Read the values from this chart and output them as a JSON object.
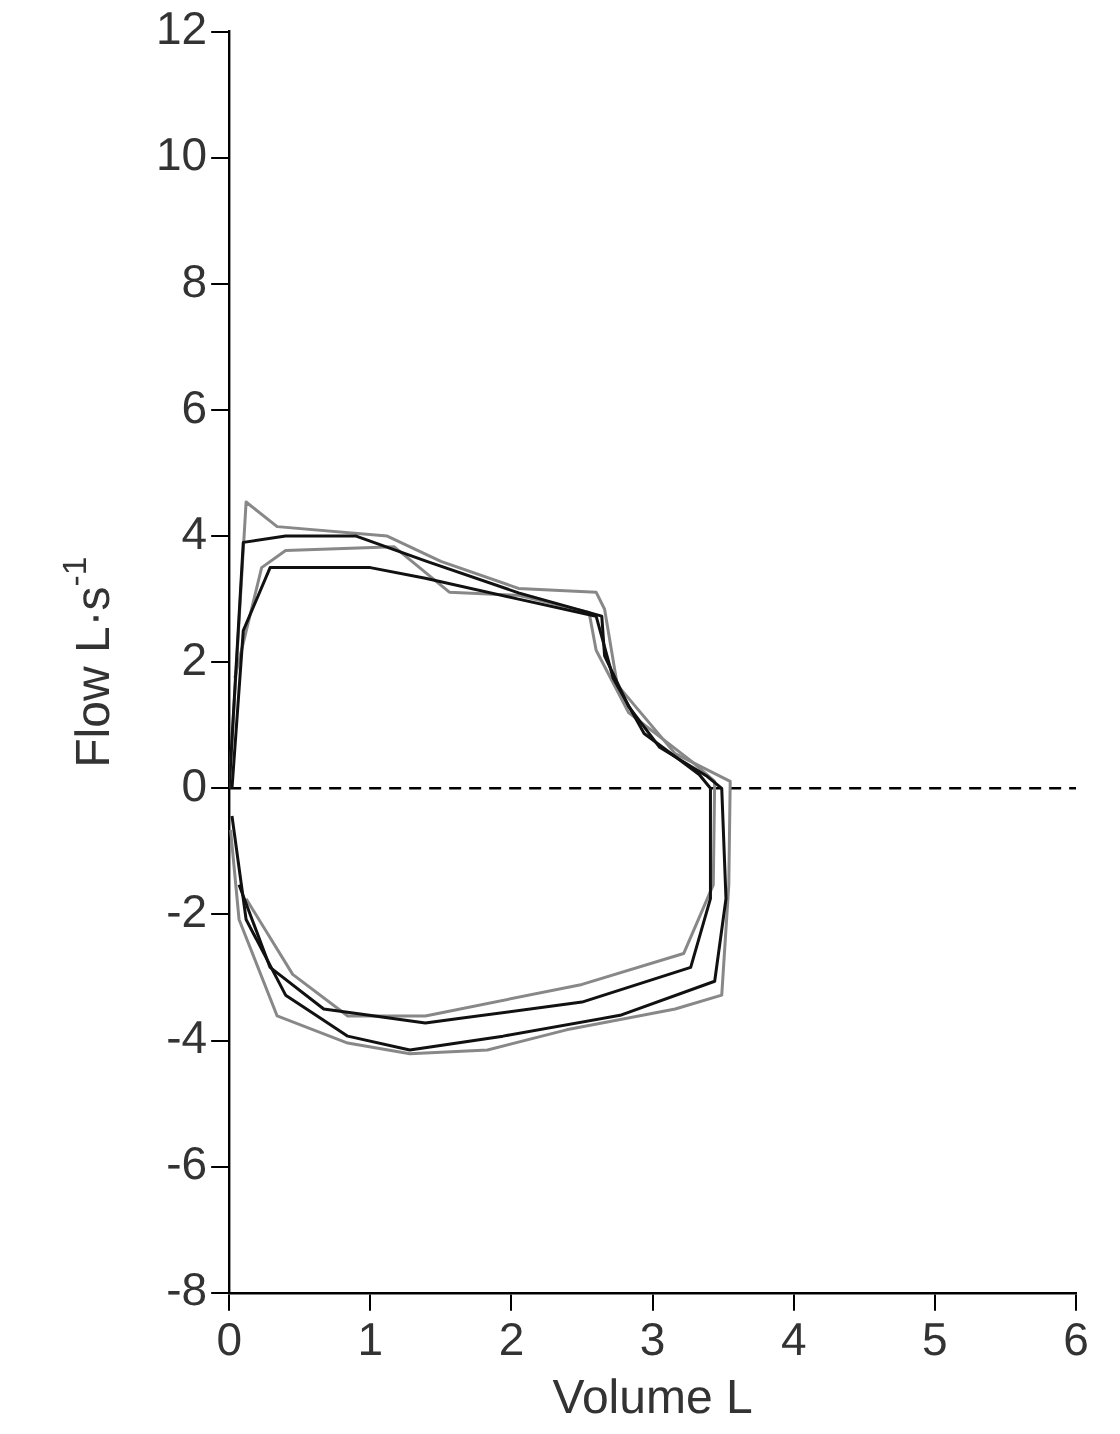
{
  "chart_data": {
    "type": "line",
    "xlabel": "Volume L",
    "ylabel": "Flow L·s$^{-1}$",
    "xlim": [
      0,
      6
    ],
    "xticks": [
      0,
      1,
      2,
      3,
      4,
      5,
      6
    ],
    "ylim": [
      -8,
      12
    ],
    "yticks": [
      -8,
      -6,
      -4,
      -2,
      0,
      2,
      4,
      6,
      8,
      10,
      12
    ],
    "grid": false,
    "legend": false,
    "marker": "none",
    "line_style": "solid",
    "ref_lines": [
      {
        "axis": "y",
        "value": 0,
        "line_style": "dashed",
        "color": "#000000"
      }
    ],
    "series": [
      {
        "color": "#111111",
        "x": [
          0,
          0.1,
          0.4,
          0.9,
          1.4,
          2.05,
          2.64,
          2.66,
          2.83,
          3.05,
          3.38,
          3.49,
          3.52,
          3.44,
          2.77,
          1.94,
          1.28,
          0.84,
          0.4,
          0.12,
          0.02
        ],
        "values": [
          0,
          3.9,
          4.0,
          4.0,
          3.6,
          3.1,
          2.73,
          2.1,
          1.3,
          0.65,
          0.2,
          0,
          -1.75,
          -3.06,
          -3.6,
          -3.93,
          -4.15,
          -3.93,
          -3.28,
          -2.08,
          -0.44
        ]
      },
      {
        "color": "#111111",
        "x": [
          0.02,
          0.1,
          0.29,
          1.0,
          1.39,
          2.05,
          2.6,
          2.72,
          2.94,
          3.33,
          3.41,
          3.41,
          3.27,
          2.5,
          1.39,
          0.67,
          0.29,
          0.07
        ],
        "values": [
          0,
          2.5,
          3.5,
          3.5,
          3.33,
          3.0,
          2.73,
          1.75,
          0.87,
          0.22,
          0,
          -1.75,
          -2.84,
          -3.39,
          -3.72,
          -3.5,
          -2.84,
          -1.53
        ]
      },
      {
        "color": "#888888",
        "x": [
          0,
          0.12,
          0.34,
          1.12,
          1.5,
          2.05,
          2.6,
          2.66,
          2.75,
          3.16,
          3.55,
          3.54,
          3.49,
          3.16,
          2.39,
          1.83,
          1.28,
          0.84,
          0.34,
          0.07,
          0.01
        ],
        "values": [
          0,
          4.54,
          4.15,
          4.0,
          3.6,
          3.17,
          3.11,
          2.84,
          1.64,
          0.55,
          0.11,
          -1.53,
          -3.28,
          -3.5,
          -3.83,
          -4.15,
          -4.21,
          -4.04,
          -3.61,
          -2.08,
          -0.66
        ]
      },
      {
        "color": "#888888",
        "x": [
          0.04,
          0.23,
          0.4,
          1.17,
          1.56,
          2.05,
          2.55,
          2.6,
          2.83,
          3.27,
          3.44,
          3.43,
          3.22,
          2.5,
          1.39,
          0.84,
          0.45,
          0.12
        ],
        "values": [
          1.75,
          3.5,
          3.77,
          3.83,
          3.11,
          3.06,
          2.79,
          2.19,
          1.2,
          0.44,
          0.11,
          -1.53,
          -2.62,
          -3.11,
          -3.61,
          -3.61,
          -2.95,
          -1.75
        ]
      }
    ]
  }
}
